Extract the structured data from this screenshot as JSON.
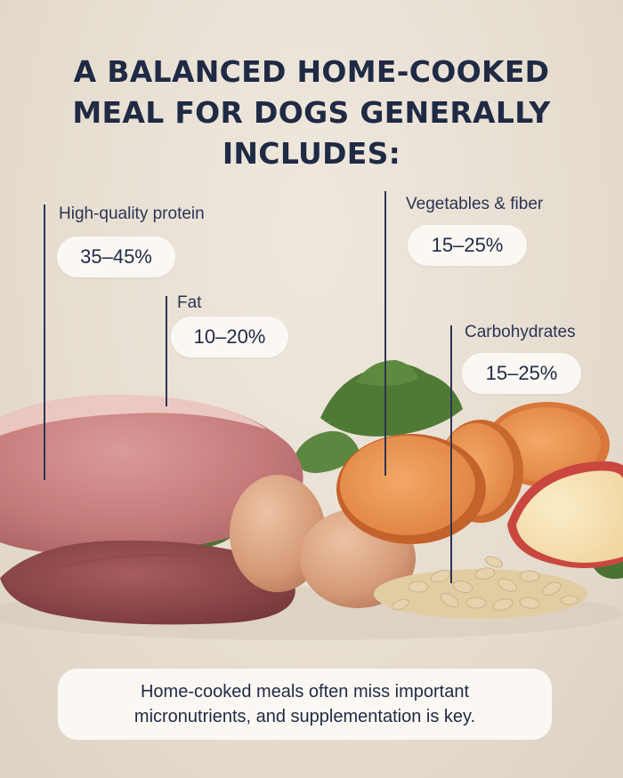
{
  "title": {
    "line1": "A BALANCED HOME-COOKED",
    "line2": "MEAL FOR DOGS GENERALLY",
    "line3": "INCLUDES:"
  },
  "components": {
    "protein": {
      "label": "High-quality protein",
      "range": "35–45%"
    },
    "fat": {
      "label": "Fat",
      "range": "10–20%"
    },
    "vegetables": {
      "label": "Vegetables & fiber",
      "range": "15–25%"
    },
    "carbs": {
      "label": "Carbohydrates",
      "range": "15–25%"
    }
  },
  "note": {
    "line1": "Home-cooked meals often miss important",
    "line2": "micronutrients, and supplementation is key."
  },
  "colors": {
    "background": "#e9e2d7",
    "text": "#1f2a44",
    "pill": "#fbf8f3"
  }
}
